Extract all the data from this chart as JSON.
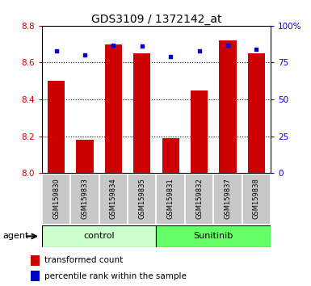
{
  "title": "GDS3109 / 1372142_at",
  "samples": [
    "GSM159830",
    "GSM159833",
    "GSM159834",
    "GSM159835",
    "GSM159831",
    "GSM159832",
    "GSM159837",
    "GSM159838"
  ],
  "bar_values": [
    8.5,
    8.18,
    8.7,
    8.65,
    8.19,
    8.45,
    8.72,
    8.65
  ],
  "percentile_values": [
    83,
    80,
    87,
    86,
    79,
    83,
    87,
    84
  ],
  "groups": [
    {
      "label": "control",
      "indices": [
        0,
        3
      ],
      "color_light": "#ccffcc",
      "color_dark": "#66ff66"
    },
    {
      "label": "Sunitinib",
      "indices": [
        4,
        7
      ],
      "color_light": "#66ff66",
      "color_dark": "#00cc00"
    }
  ],
  "bar_color": "#cc0000",
  "dot_color": "#0000cc",
  "ylim_left": [
    8.0,
    8.8
  ],
  "ylim_right": [
    0,
    100
  ],
  "yticks_left": [
    8.0,
    8.2,
    8.4,
    8.6,
    8.8
  ],
  "yticks_right": [
    0,
    25,
    50,
    75,
    100
  ],
  "ytick_labels_right": [
    "0",
    "25",
    "50",
    "75",
    "100%"
  ],
  "grid_values": [
    8.2,
    8.4,
    8.6
  ],
  "bar_width": 0.6,
  "left_tick_color": "#cc0000",
  "right_tick_color": "#0000cc",
  "background_color": "#ffffff",
  "plot_bg_color": "#ffffff",
  "xlabel_area_color": "#c8c8c8",
  "legend_items": [
    {
      "color": "#cc0000",
      "label": "transformed count"
    },
    {
      "color": "#0000cc",
      "label": "percentile rank within the sample"
    }
  ]
}
